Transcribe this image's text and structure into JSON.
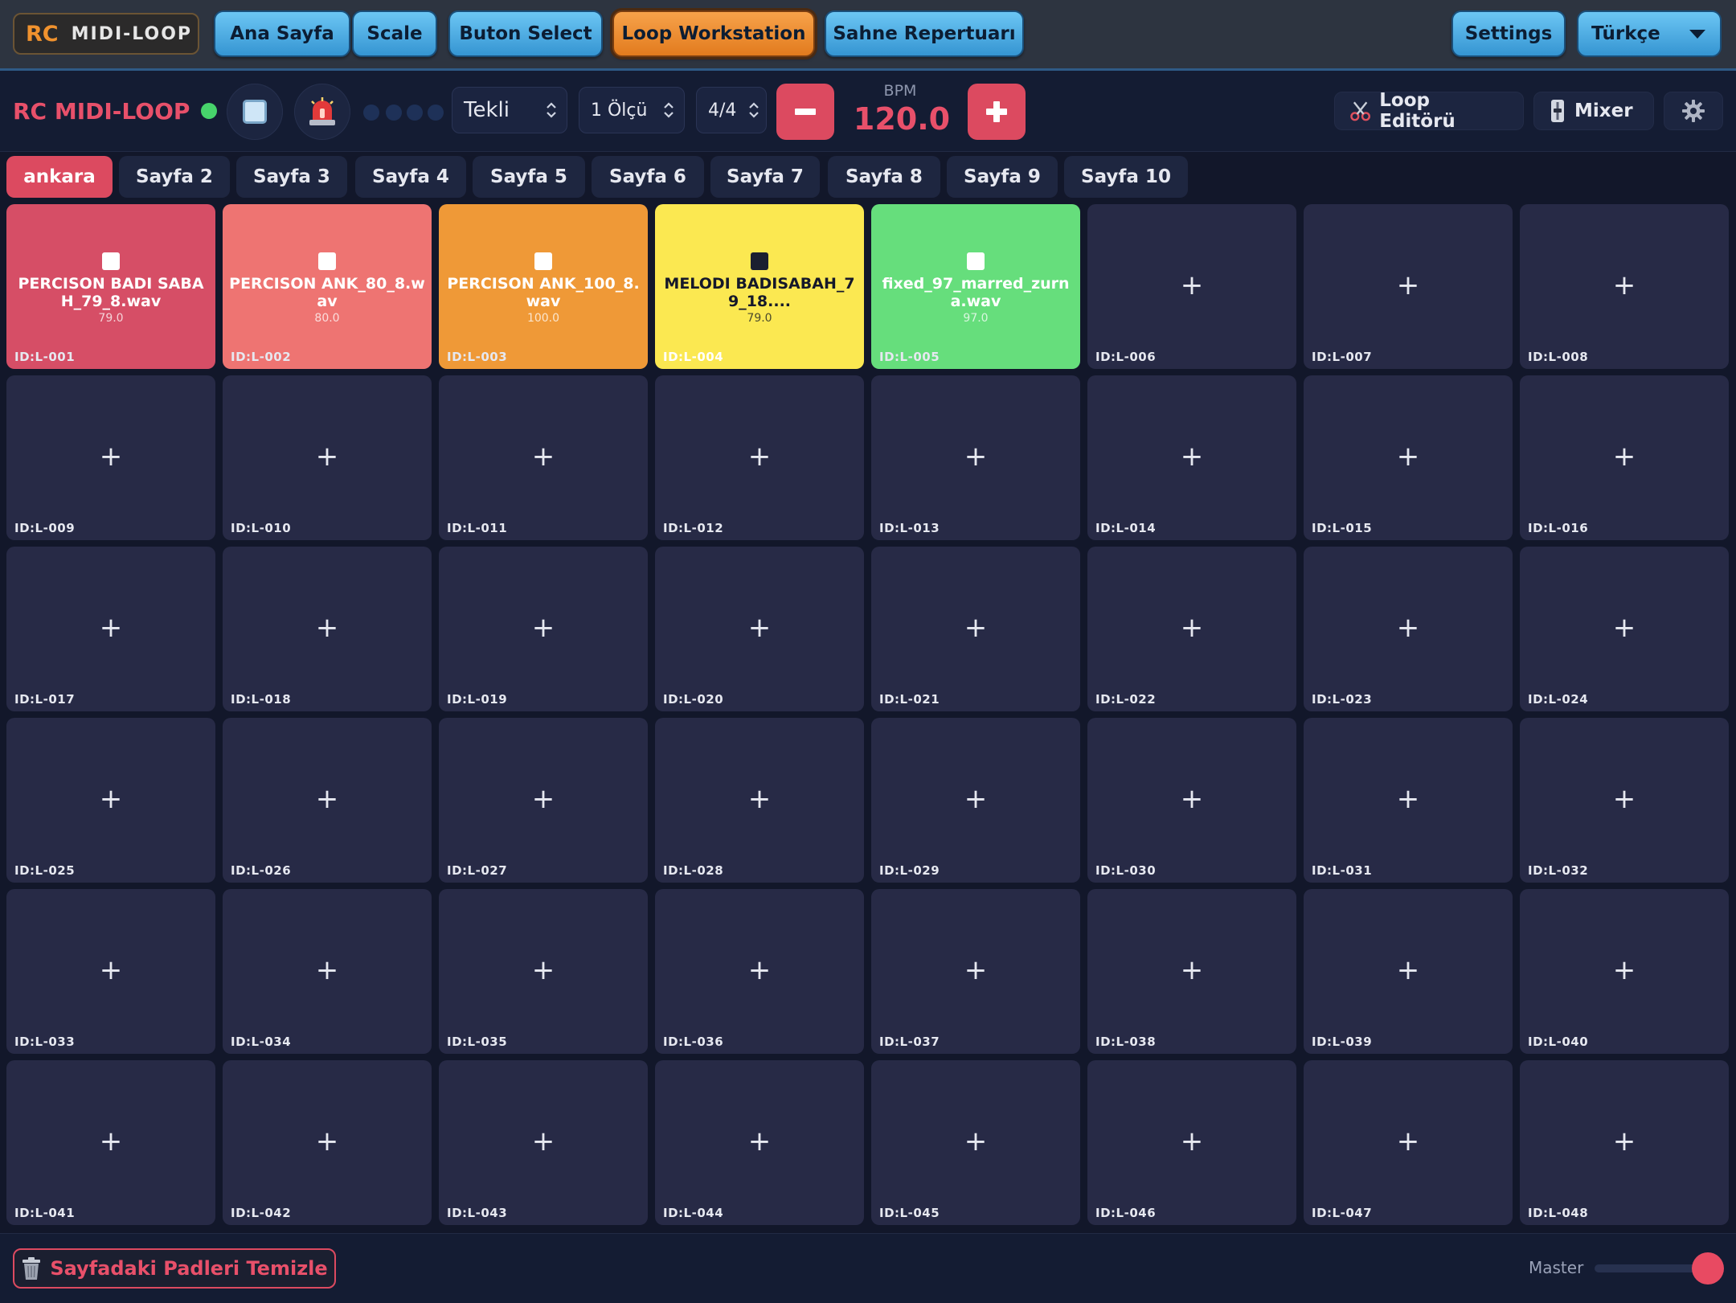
{
  "nav": {
    "logo_rc": "RC",
    "logo_text": "MIDI-LOOP",
    "items": [
      {
        "label": "Ana Sayfa",
        "active": false
      },
      {
        "label": "Scale",
        "active": false
      },
      {
        "label": "Buton Select",
        "active": false
      },
      {
        "label": "Loop Workstation",
        "active": true
      },
      {
        "label": "Sahne Repertuarı",
        "active": false
      }
    ],
    "settings_label": "Settings",
    "language": "Türkçe"
  },
  "toolbar": {
    "brand": "RC MIDI-LOOP",
    "mode": "Tekli",
    "measure": "1 Ölçü",
    "time_signature": "4/4",
    "bpm_label": "BPM",
    "bpm_value": "120.0",
    "loop_editor_label": "Loop Editörü",
    "mixer_label": "Mixer",
    "status_color": "#47d36b"
  },
  "tabs": [
    {
      "label": "ankara",
      "active": true
    },
    {
      "label": "Sayfa 2",
      "active": false
    },
    {
      "label": "Sayfa 3",
      "active": false
    },
    {
      "label": "Sayfa 4",
      "active": false
    },
    {
      "label": "Sayfa 5",
      "active": false
    },
    {
      "label": "Sayfa 6",
      "active": false
    },
    {
      "label": "Sayfa 7",
      "active": false
    },
    {
      "label": "Sayfa 8",
      "active": false
    },
    {
      "label": "Sayfa 9",
      "active": false
    },
    {
      "label": "Sayfa 10",
      "active": false
    }
  ],
  "pads": [
    {
      "id": "ID:L-001",
      "name": "PERCISON BADI SABAH_79_8.wav",
      "bpm": "79.0",
      "color": "#d64e66"
    },
    {
      "id": "ID:L-002",
      "name": "PERCISON ANK_80_8.wav",
      "bpm": "80.0",
      "color": "#ee7472"
    },
    {
      "id": "ID:L-003",
      "name": "PERCISON ANK_100_8.wav",
      "bpm": "100.0",
      "color": "#ef9937"
    },
    {
      "id": "ID:L-004",
      "name": "MELODI BADISABAH_79_18....",
      "bpm": "79.0",
      "color": "#fbe851",
      "dark": true
    },
    {
      "id": "ID:L-005",
      "name": "fixed_97_marred_zurna.wav",
      "bpm": "97.0",
      "color": "#66de7c"
    },
    {
      "id": "ID:L-006"
    },
    {
      "id": "ID:L-007"
    },
    {
      "id": "ID:L-008"
    },
    {
      "id": "ID:L-009"
    },
    {
      "id": "ID:L-010"
    },
    {
      "id": "ID:L-011"
    },
    {
      "id": "ID:L-012"
    },
    {
      "id": "ID:L-013"
    },
    {
      "id": "ID:L-014"
    },
    {
      "id": "ID:L-015"
    },
    {
      "id": "ID:L-016"
    },
    {
      "id": "ID:L-017"
    },
    {
      "id": "ID:L-018"
    },
    {
      "id": "ID:L-019"
    },
    {
      "id": "ID:L-020"
    },
    {
      "id": "ID:L-021"
    },
    {
      "id": "ID:L-022"
    },
    {
      "id": "ID:L-023"
    },
    {
      "id": "ID:L-024"
    },
    {
      "id": "ID:L-025"
    },
    {
      "id": "ID:L-026"
    },
    {
      "id": "ID:L-027"
    },
    {
      "id": "ID:L-028"
    },
    {
      "id": "ID:L-029"
    },
    {
      "id": "ID:L-030"
    },
    {
      "id": "ID:L-031"
    },
    {
      "id": "ID:L-032"
    },
    {
      "id": "ID:L-033"
    },
    {
      "id": "ID:L-034"
    },
    {
      "id": "ID:L-035"
    },
    {
      "id": "ID:L-036"
    },
    {
      "id": "ID:L-037"
    },
    {
      "id": "ID:L-038"
    },
    {
      "id": "ID:L-039"
    },
    {
      "id": "ID:L-040"
    },
    {
      "id": "ID:L-041"
    },
    {
      "id": "ID:L-042"
    },
    {
      "id": "ID:L-043"
    },
    {
      "id": "ID:L-044"
    },
    {
      "id": "ID:L-045"
    },
    {
      "id": "ID:L-046"
    },
    {
      "id": "ID:L-047"
    },
    {
      "id": "ID:L-048"
    }
  ],
  "pad_empty_symbol": "+",
  "footer": {
    "clear_label": "Sayfadaki Padleri Temizle",
    "master_label": "Master",
    "master_volume": 0.88
  }
}
